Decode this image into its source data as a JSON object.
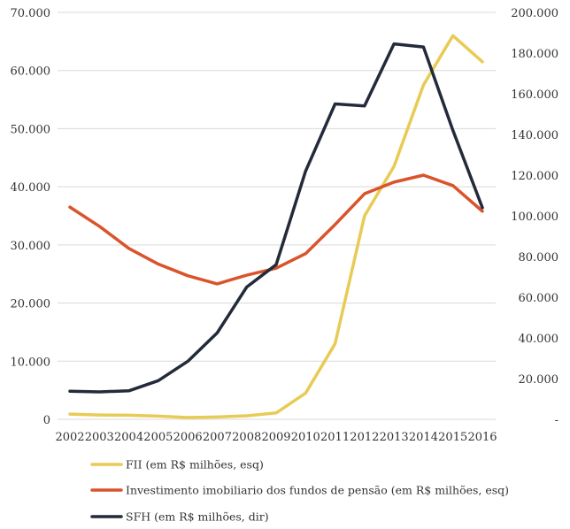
{
  "chart_data": {
    "type": "line",
    "x": [
      2002,
      2003,
      2004,
      2005,
      2006,
      2007,
      2008,
      2009,
      2010,
      2011,
      2012,
      2013,
      2014,
      2015,
      2016
    ],
    "x_tick_labels": [
      "2002",
      "2003",
      "2004",
      "2005",
      "2006",
      "2007",
      "2008",
      "2009",
      "2010",
      "2011",
      "2012",
      "2013",
      "2014",
      "2015",
      "2016"
    ],
    "ylim_left": [
      0,
      70000
    ],
    "ylim_right": [
      0,
      200000
    ],
    "y_left_ticks": [
      0,
      10000,
      20000,
      30000,
      40000,
      50000,
      60000,
      70000
    ],
    "y_left_tick_labels": [
      "0",
      "10.000",
      "20.000",
      "30.000",
      "40.000",
      "50.000",
      "60.000",
      "70.000"
    ],
    "y_right_ticks": [
      0,
      20000,
      40000,
      60000,
      80000,
      100000,
      120000,
      140000,
      160000,
      180000,
      200000
    ],
    "y_right_tick_labels": [
      "-",
      "20.000",
      "40.000",
      "60.000",
      "80.000",
      "100.000",
      "120.000",
      "140.000",
      "160.000",
      "180.000",
      "200.000"
    ],
    "grid": true,
    "legend_position": "bottom-left",
    "series": [
      {
        "name": "FII (em R$ milhões, esq)",
        "axis": "left",
        "color": "#E8CB55",
        "values": [
          900,
          750,
          700,
          550,
          300,
          400,
          600,
          1100,
          4500,
          13000,
          35000,
          43500,
          57500,
          66000,
          61500
        ]
      },
      {
        "name": "Investimento imobiliario dos fundos de pensão (em R$ milhões, esq)",
        "axis": "left",
        "color": "#D9542B",
        "values": [
          36500,
          33200,
          29400,
          26700,
          24700,
          23300,
          24800,
          26000,
          28500,
          33500,
          38800,
          40800,
          42000,
          40200,
          35800
        ]
      },
      {
        "name": "SFH  (em R$ milhões, dir)",
        "axis": "right",
        "color": "#232A3A",
        "values": [
          13800,
          13500,
          14000,
          19000,
          28500,
          42500,
          65000,
          76000,
          122000,
          155000,
          154000,
          184500,
          183000,
          142000,
          104000
        ]
      }
    ]
  }
}
